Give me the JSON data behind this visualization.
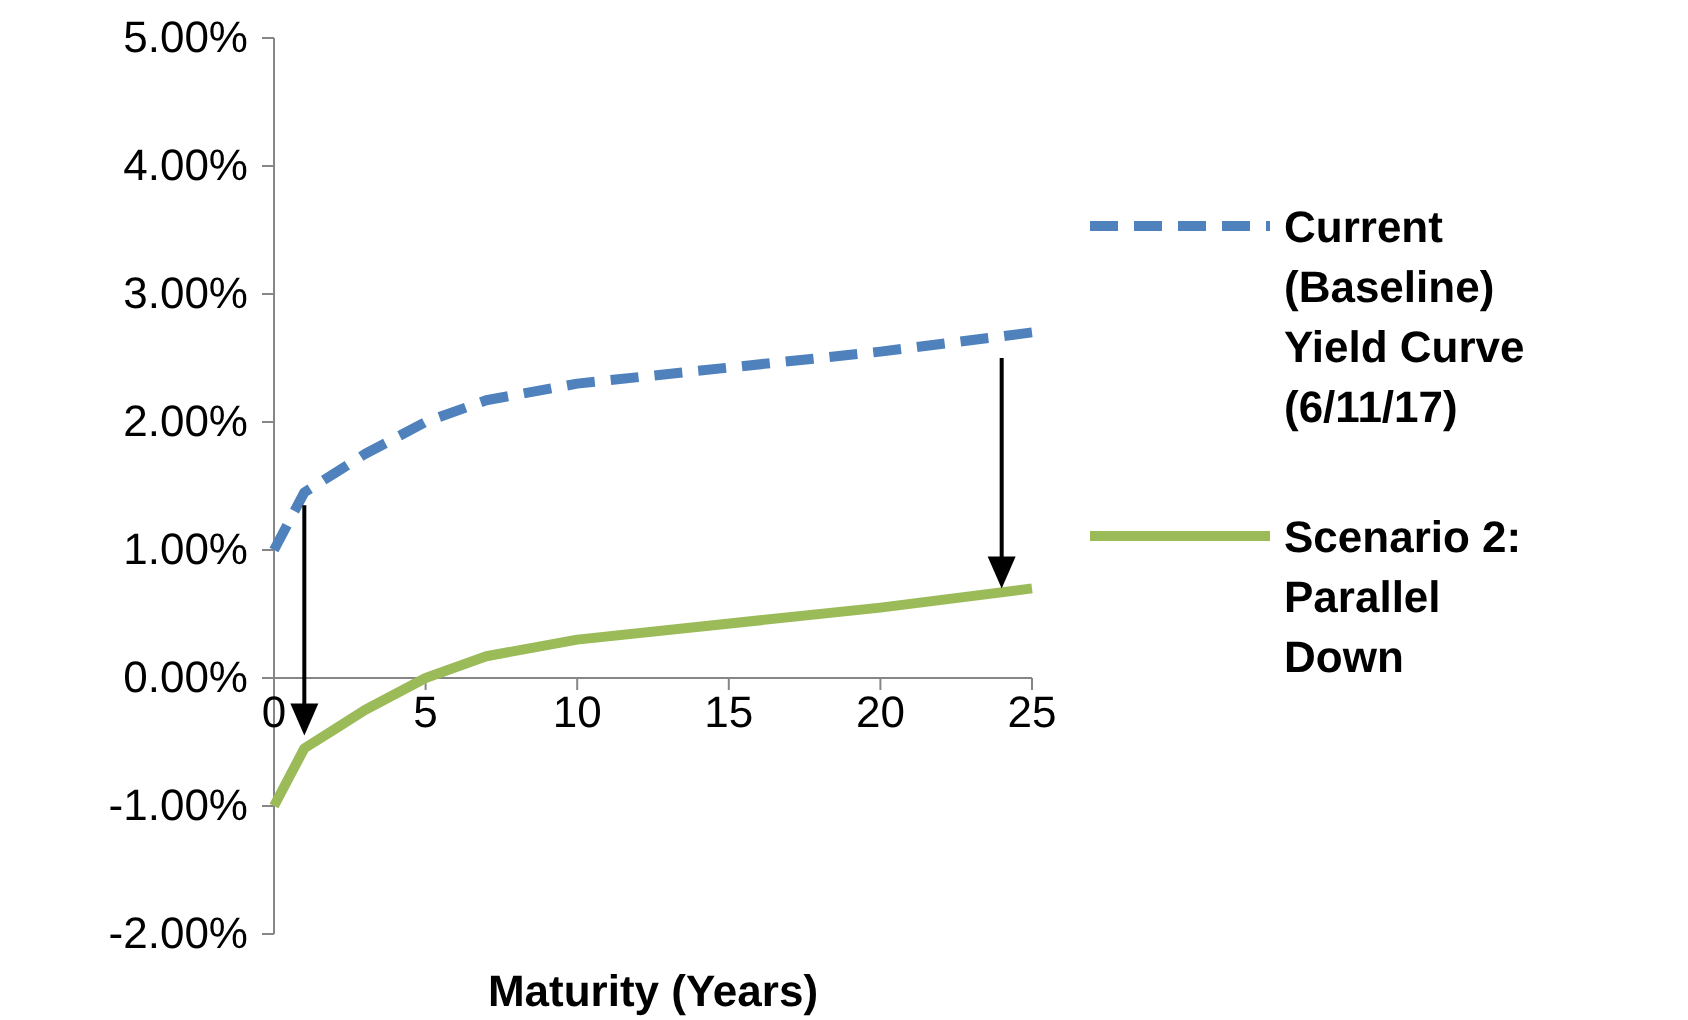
{
  "chart_data": {
    "type": "line",
    "xlabel": "Maturity (Years)",
    "xlim": [
      0,
      25
    ],
    "xticks": [
      0,
      5,
      10,
      15,
      20,
      25
    ],
    "ylim": [
      -2,
      5
    ],
    "yticks": [
      {
        "value": -2,
        "label": "-2.00%"
      },
      {
        "value": -1,
        "label": "-1.00%"
      },
      {
        "value": 0,
        "label": "0.00%"
      },
      {
        "value": 1,
        "label": "1.00%"
      },
      {
        "value": 2,
        "label": "2.00%"
      },
      {
        "value": 3,
        "label": "3.00%"
      },
      {
        "value": 4,
        "label": "4.00%"
      },
      {
        "value": 5,
        "label": "5.00%"
      }
    ],
    "grid": false,
    "legend": "right",
    "marker": "none",
    "series": [
      {
        "name": "Current (Baseline) Yield Curve (6/11/17)",
        "color": "#4f81bd",
        "line_style": "dashed",
        "x": [
          0,
          1,
          2,
          3,
          5,
          7,
          10,
          20,
          25
        ],
        "values": [
          1.0,
          1.45,
          1.6,
          1.75,
          2.0,
          2.17,
          2.3,
          2.55,
          2.7
        ]
      },
      {
        "name": "Scenario 2: Parallel Down",
        "color": "#9bbb59",
        "line_style": "solid",
        "x": [
          0,
          1,
          2,
          3,
          5,
          7,
          10,
          20,
          25
        ],
        "values": [
          -1.0,
          -0.55,
          -0.4,
          -0.25,
          0.0,
          0.17,
          0.3,
          0.55,
          0.7
        ]
      }
    ]
  }
}
